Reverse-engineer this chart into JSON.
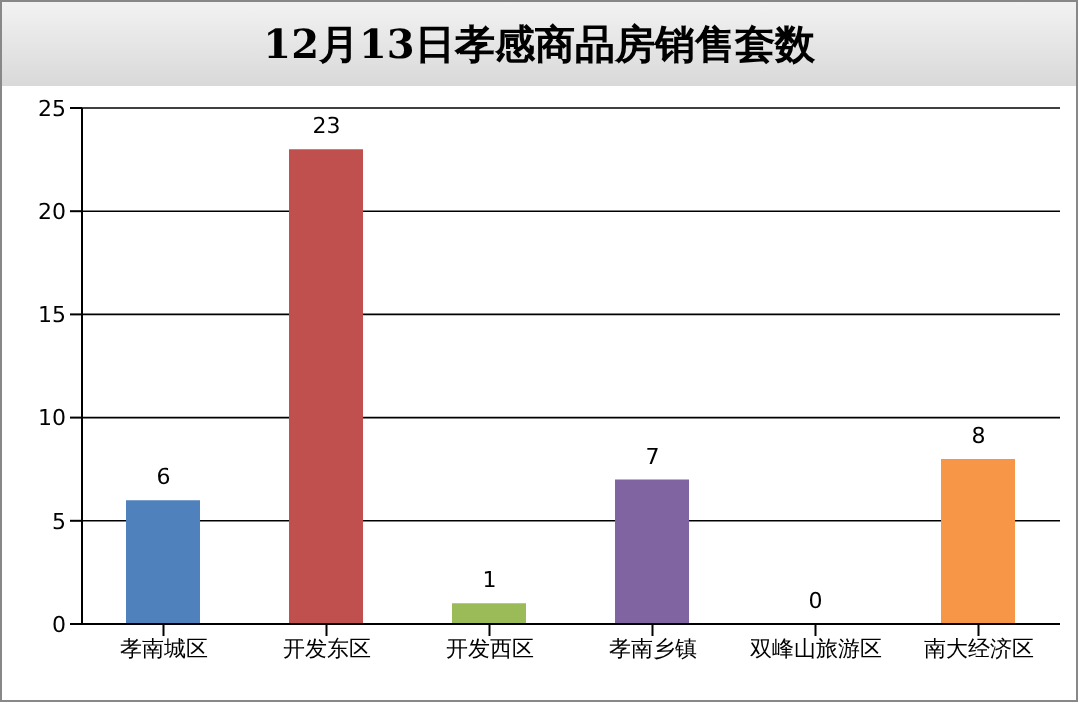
{
  "chart_data": {
    "type": "bar",
    "title": "12月13日孝感商品房销售套数",
    "categories": [
      "孝南城区",
      "开发东区",
      "开发西区",
      "孝南乡镇",
      "双峰山旅游区",
      "南大经济区"
    ],
    "values": [
      6,
      23,
      1,
      7,
      0,
      8
    ],
    "colors": [
      "#4f81bd",
      "#c0504d",
      "#9bbb59",
      "#8064a2",
      "#4bacc6",
      "#f79646"
    ],
    "ylim": [
      0,
      25
    ],
    "yticks": [
      0,
      5,
      10,
      15,
      20,
      25
    ],
    "grid": "y",
    "data_labels": true
  }
}
